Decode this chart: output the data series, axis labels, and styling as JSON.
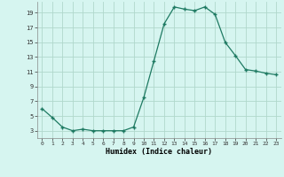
{
  "x": [
    0,
    1,
    2,
    3,
    4,
    5,
    6,
    7,
    8,
    9,
    10,
    11,
    12,
    13,
    14,
    15,
    16,
    17,
    18,
    19,
    20,
    21,
    22,
    23
  ],
  "y": [
    6.0,
    4.8,
    3.5,
    3.0,
    3.2,
    3.0,
    3.0,
    3.0,
    3.0,
    3.5,
    7.5,
    12.5,
    17.5,
    19.8,
    19.5,
    19.3,
    19.8,
    18.8,
    15.0,
    13.2,
    11.3,
    11.1,
    10.8,
    10.6
  ],
  "xlim": [
    -0.5,
    23.5
  ],
  "ylim": [
    2.0,
    20.5
  ],
  "yticks": [
    3,
    5,
    7,
    9,
    11,
    13,
    15,
    17,
    19
  ],
  "xticks": [
    0,
    1,
    2,
    3,
    4,
    5,
    6,
    7,
    8,
    9,
    10,
    11,
    12,
    13,
    14,
    15,
    16,
    17,
    18,
    19,
    20,
    21,
    22,
    23
  ],
  "xlabel": "Humidex (Indice chaleur)",
  "line_color": "#1e7a62",
  "marker_color": "#1e7a62",
  "bg_color": "#d6f5f0",
  "grid_color": "#b0d8cc"
}
